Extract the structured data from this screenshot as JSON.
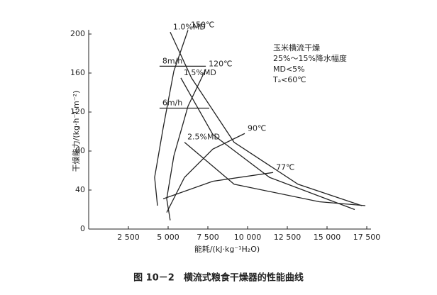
{
  "chart_data": {
    "type": "line",
    "caption": "图 10－2　横流式粮食干燥器的性能曲线",
    "x_label": "能耗/(kJ·kg⁻¹H₂O)",
    "y_label": "干燥能力/(kg·h⁻¹·m⁻²)",
    "notes": [
      "玉米横流干燥",
      "25%～15%降水幅度",
      "MD<5%",
      "Tₐ<60℃"
    ],
    "xlim": [
      0,
      17500
    ],
    "ylim": [
      0,
      200
    ],
    "xticks": [
      {
        "value": 2500,
        "label": "2 500"
      },
      {
        "value": 5000,
        "label": "5 000"
      },
      {
        "value": 7500,
        "label": "7 500"
      },
      {
        "value": 10000,
        "label": "10 000"
      },
      {
        "value": 12500,
        "label": "12 500"
      },
      {
        "value": 15000,
        "label": "15 000"
      },
      {
        "value": 17500,
        "label": "17 500"
      }
    ],
    "yticks": [
      0,
      40,
      80,
      120,
      160,
      200
    ],
    "series": [
      {
        "name": "150℃",
        "color": "#222",
        "x": [
          6250,
          5360,
          4690,
          4150,
          4330
        ],
        "values": [
          204,
          162,
          104,
          53,
          24
        ]
      },
      {
        "name": "120℃",
        "color": "#222",
        "x": [
          7370,
          6250,
          5360,
          4910,
          5130
        ],
        "values": [
          164,
          126,
          75,
          31,
          9
        ]
      },
      {
        "name": "90℃",
        "color": "#222",
        "x": [
          9820,
          7810,
          6030,
          4910
        ],
        "values": [
          98,
          82,
          53,
          17
        ]
      },
      {
        "name": "77℃",
        "color": "#222",
        "x": [
          11610,
          7810,
          4690
        ],
        "values": [
          58,
          49,
          31
        ]
      },
      {
        "name": "1.0%MD",
        "color": "#222",
        "x": [
          5130,
          6470,
          9150,
          13170,
          17190
        ],
        "values": [
          202,
          155,
          89,
          46,
          24
        ]
      },
      {
        "name": "1.5%MD",
        "color": "#222",
        "x": [
          5800,
          7810,
          11380,
          16740
        ],
        "values": [
          155,
          97,
          53,
          20
        ]
      },
      {
        "name": "2.5%MD",
        "color": "#222",
        "x": [
          6030,
          9150,
          14510,
          17410
        ],
        "values": [
          89,
          46,
          28,
          24
        ]
      },
      {
        "name": "8m/h",
        "color": "#222",
        "x": [
          4460,
          7370
        ],
        "values": [
          167,
          167
        ]
      },
      {
        "name": "6m/h",
        "color": "#222",
        "x": [
          4460,
          7590
        ],
        "values": [
          124,
          124
        ]
      }
    ]
  }
}
